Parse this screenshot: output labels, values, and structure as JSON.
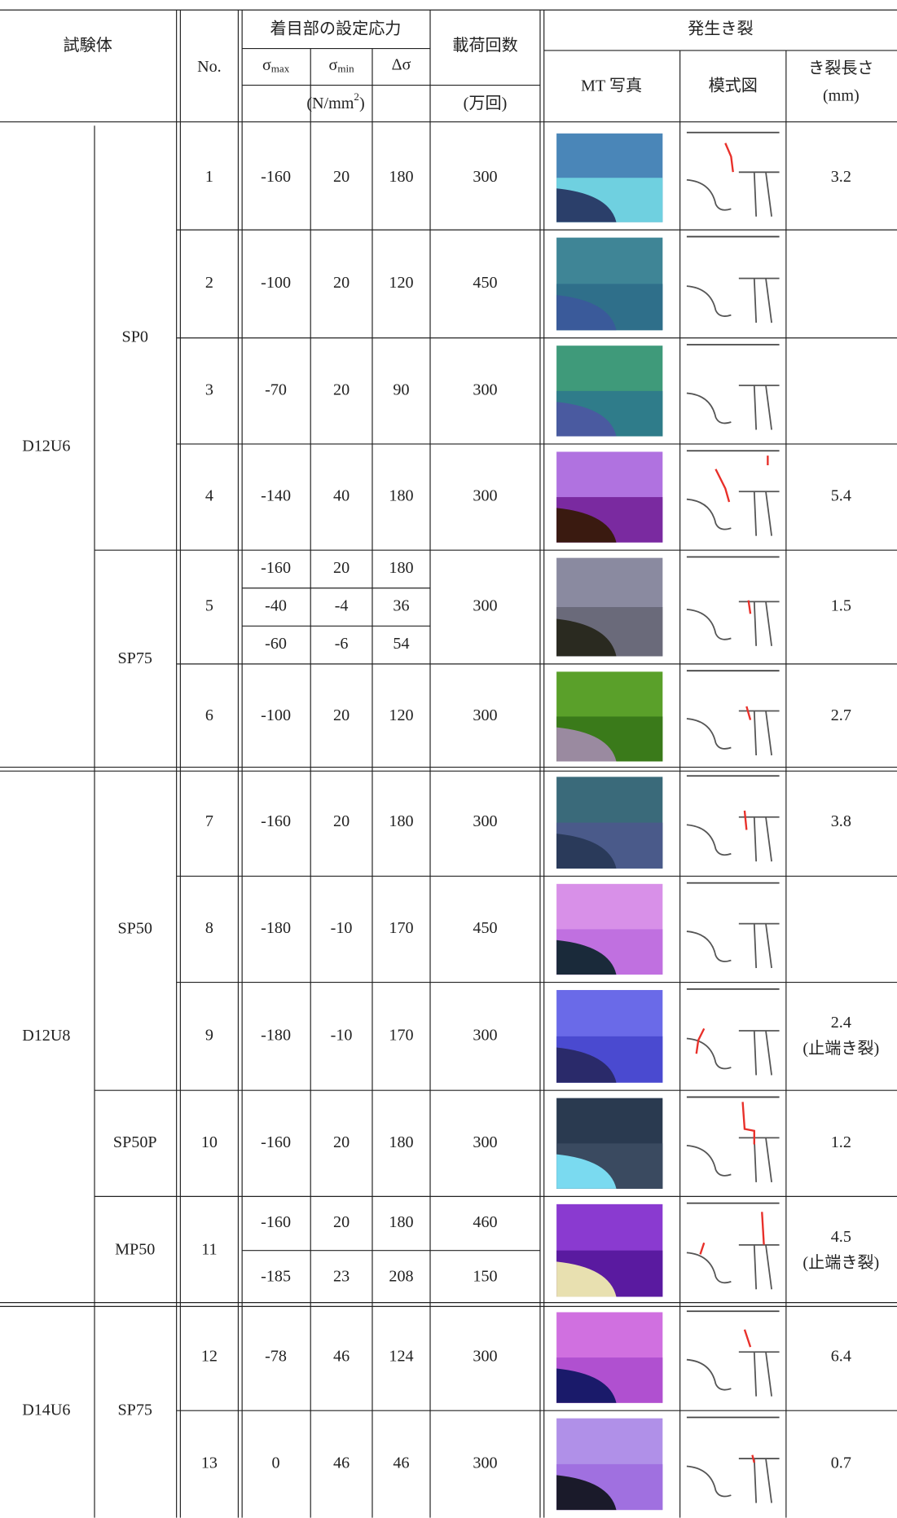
{
  "header": {
    "specimen": "試験体",
    "no": "No.",
    "stress": "着目部の設定応力",
    "sigma_max": {
      "symbol": "σ",
      "sub": "max"
    },
    "sigma_min": {
      "symbol": "σ",
      "sub": "min"
    },
    "delta_sigma": "Δσ",
    "stress_unit": {
      "open": "(N/mm",
      "sup": "2",
      "close": ")"
    },
    "cycles": "載荷回数",
    "cycles_unit": "(万回)",
    "crack": "発生き裂",
    "photo": "MT 写真",
    "schematic": "模式図",
    "length": "き裂長さ",
    "length_unit": "(mm)"
  },
  "groups": [
    {
      "name": "D12U6",
      "subgroups": [
        {
          "name": "SP0",
          "rows": [
            {
              "no": 1,
              "stresses": [
                [
                  -160,
                  20,
                  180
                ]
              ],
              "cycles": [
                300
              ],
              "length": 3.2
            },
            {
              "no": 2,
              "stresses": [
                [
                  -100,
                  20,
                  120
                ]
              ],
              "cycles": [
                450
              ]
            },
            {
              "no": 3,
              "stresses": [
                [
                  -70,
                  20,
                  90
                ]
              ],
              "cycles": [
                300
              ]
            },
            {
              "no": 4,
              "stresses": [
                [
                  -140,
                  40,
                  180
                ]
              ],
              "cycles": [
                300
              ],
              "length": 5.4
            }
          ]
        },
        {
          "name": "SP75",
          "rows": [
            {
              "no": 5,
              "stresses": [
                [
                  -160,
                  20,
                  180
                ],
                [
                  -40,
                  -4,
                  36
                ],
                [
                  -60,
                  -6,
                  54
                ]
              ],
              "cycles": [
                300
              ],
              "length": 1.5
            },
            {
              "no": 6,
              "stresses": [
                [
                  -100,
                  20,
                  120
                ]
              ],
              "cycles": [
                300
              ],
              "length": 2.7
            }
          ]
        }
      ]
    },
    {
      "name": "D12U8",
      "subgroups": [
        {
          "name": "SP50",
          "rows": [
            {
              "no": 7,
              "stresses": [
                [
                  -160,
                  20,
                  180
                ]
              ],
              "cycles": [
                300
              ],
              "length": 3.8
            },
            {
              "no": 8,
              "stresses": [
                [
                  -180,
                  -10,
                  170
                ]
              ],
              "cycles": [
                450
              ]
            },
            {
              "no": 9,
              "stresses": [
                [
                  -180,
                  -10,
                  170
                ]
              ],
              "cycles": [
                300
              ],
              "length": 2.4,
              "note": "(止端き裂)"
            }
          ]
        },
        {
          "name": "SP50P",
          "rows": [
            {
              "no": 10,
              "stresses": [
                [
                  -160,
                  20,
                  180
                ]
              ],
              "cycles": [
                300
              ],
              "length": 1.2
            }
          ]
        },
        {
          "name": "MP50",
          "rows": [
            {
              "no": 11,
              "stresses": [
                [
                  -160,
                  20,
                  180
                ],
                [
                  -185,
                  23,
                  208
                ]
              ],
              "cycles": [
                460,
                150
              ],
              "length": 4.5,
              "note": "(止端き裂)"
            }
          ]
        }
      ]
    },
    {
      "name": "D14U6",
      "subgroups": [
        {
          "name": "SP75",
          "rows": [
            {
              "no": 12,
              "stresses": [
                [
                  -78,
                  46,
                  124
                ]
              ],
              "cycles": [
                300
              ],
              "length": 6.4
            },
            {
              "no": 13,
              "stresses": [
                [
                  0,
                  46,
                  46
                ]
              ],
              "cycles": [
                300
              ],
              "length": 0.7
            }
          ]
        }
      ]
    }
  ]
}
